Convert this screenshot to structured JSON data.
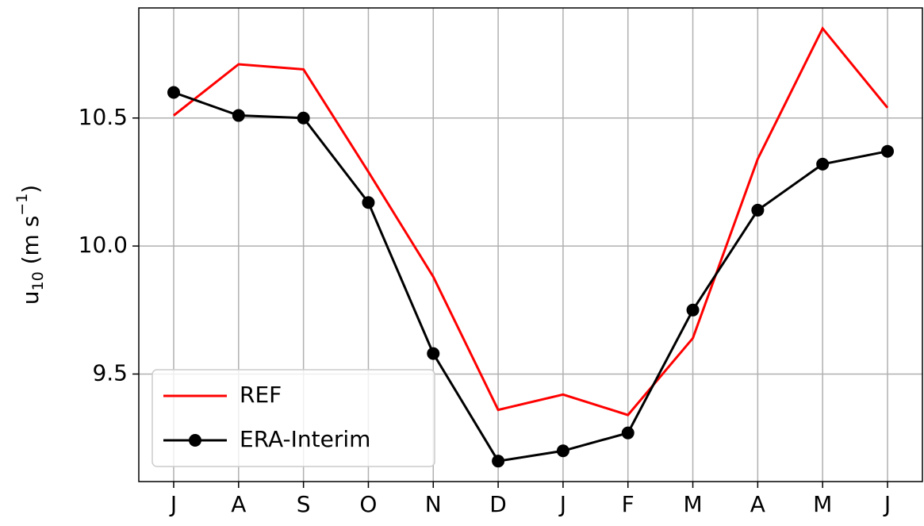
{
  "chart_data": {
    "type": "line",
    "ylabel": [
      "u",
      "10",
      " (m s",
      "−1",
      ")"
    ],
    "categories": [
      "J",
      "A",
      "S",
      "O",
      "N",
      "D",
      "J",
      "F",
      "M",
      "A",
      "M",
      "J"
    ],
    "series": [
      {
        "name": "REF",
        "color": "#ff0000",
        "marker": false,
        "values": [
          10.51,
          10.71,
          10.69,
          10.29,
          9.88,
          9.36,
          9.42,
          9.34,
          9.64,
          10.34,
          10.85,
          10.54
        ]
      },
      {
        "name": "ERA-Interim",
        "color": "#000000",
        "marker": true,
        "values": [
          10.6,
          10.51,
          10.5,
          10.17,
          9.58,
          9.16,
          9.2,
          9.27,
          9.75,
          10.14,
          10.32,
          10.37
        ]
      }
    ],
    "ylim": [
      9.08,
      10.93
    ],
    "yticks": [
      {
        "value": 9.5,
        "label": "9.5"
      },
      {
        "value": 10,
        "label": "10.0"
      },
      {
        "value": 10.5,
        "label": "10.5"
      }
    ],
    "grid": true,
    "legend": "lower left"
  }
}
